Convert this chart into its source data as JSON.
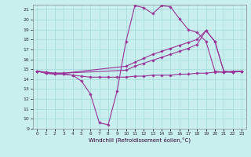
{
  "xlabel": "Windchill (Refroidissement éolien,°C)",
  "xlim": [
    -0.5,
    23.5
  ],
  "ylim": [
    9,
    21.5
  ],
  "yticks": [
    9,
    10,
    11,
    12,
    13,
    14,
    15,
    16,
    17,
    18,
    19,
    20,
    21
  ],
  "xticks": [
    0,
    1,
    2,
    3,
    4,
    5,
    6,
    7,
    8,
    9,
    10,
    11,
    12,
    13,
    14,
    15,
    16,
    17,
    18,
    19,
    20,
    21,
    22,
    23
  ],
  "bg_color": "#c8eeee",
  "grid_color": "#aadddd",
  "line_color": "#993399",
  "series": [
    {
      "x": [
        0,
        1,
        2,
        3,
        4,
        5,
        6,
        7,
        8,
        9,
        10,
        11,
        12,
        13,
        14,
        15,
        16,
        17,
        18,
        19,
        20,
        21,
        22,
        23
      ],
      "y": [
        14.8,
        14.6,
        14.5,
        14.5,
        14.4,
        13.8,
        12.5,
        9.6,
        9.4,
        12.8,
        17.8,
        21.4,
        21.2,
        20.6,
        21.4,
        21.3,
        20.1,
        19.0,
        18.7,
        17.8,
        14.8,
        14.7,
        14.8,
        14.8
      ]
    },
    {
      "x": [
        0,
        1,
        2,
        3,
        4,
        5,
        6,
        7,
        8,
        9,
        10,
        11,
        12,
        13,
        14,
        15,
        16,
        17,
        18,
        19,
        20,
        21,
        22,
        23
      ],
      "y": [
        14.8,
        14.6,
        14.5,
        14.5,
        14.4,
        14.3,
        14.2,
        14.2,
        14.2,
        14.2,
        14.2,
        14.3,
        14.3,
        14.4,
        14.4,
        14.4,
        14.5,
        14.5,
        14.6,
        14.6,
        14.7,
        14.7,
        14.7,
        14.8
      ]
    },
    {
      "x": [
        0,
        1,
        2,
        3,
        10,
        11,
        12,
        13,
        14,
        15,
        16,
        17,
        18,
        19,
        20,
        21,
        22,
        23
      ],
      "y": [
        14.8,
        14.7,
        14.6,
        14.6,
        15.3,
        15.7,
        16.1,
        16.5,
        16.8,
        17.1,
        17.4,
        17.7,
        18.0,
        18.9,
        17.8,
        14.8,
        14.7,
        14.8
      ]
    },
    {
      "x": [
        0,
        1,
        2,
        3,
        10,
        11,
        12,
        13,
        14,
        15,
        16,
        17,
        18,
        19,
        20,
        21,
        22,
        23
      ],
      "y": [
        14.8,
        14.7,
        14.6,
        14.6,
        14.9,
        15.3,
        15.6,
        15.9,
        16.2,
        16.5,
        16.8,
        17.1,
        17.5,
        18.9,
        17.8,
        14.8,
        14.7,
        14.8
      ]
    }
  ]
}
